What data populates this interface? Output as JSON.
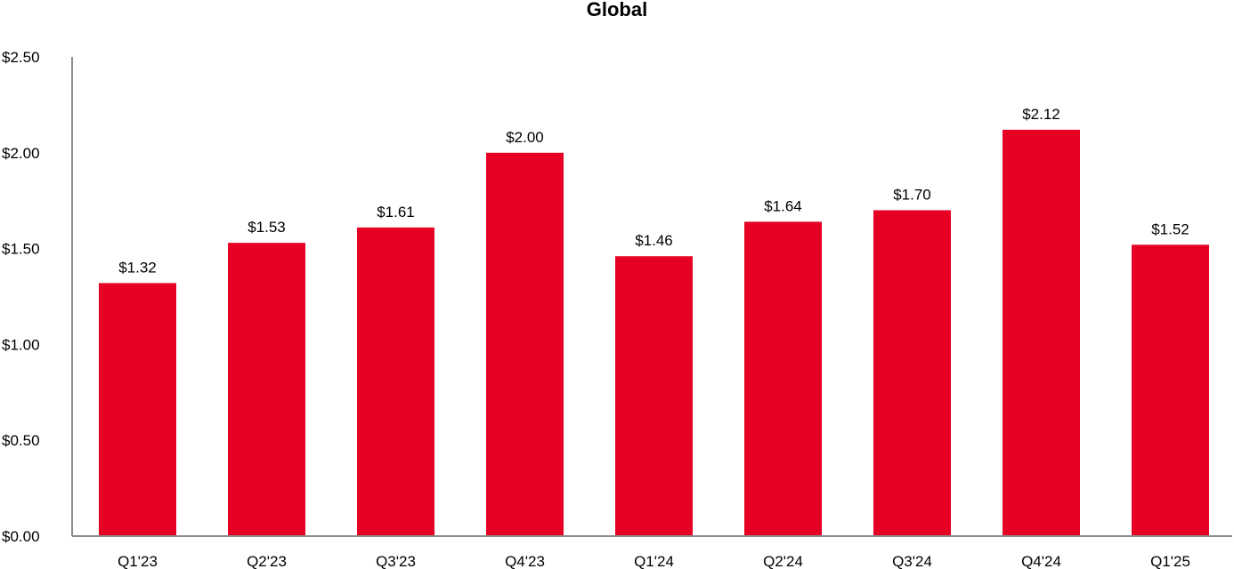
{
  "chart_data": {
    "type": "bar",
    "title": "Global",
    "xlabel": "",
    "ylabel": "",
    "categories": [
      "Q1'23",
      "Q2'23",
      "Q3'23",
      "Q4'23",
      "Q1'24",
      "Q2'24",
      "Q3'24",
      "Q4'24",
      "Q1'25"
    ],
    "values": [
      1.32,
      1.53,
      1.61,
      2.0,
      1.46,
      1.64,
      1.7,
      2.12,
      1.52
    ],
    "data_labels": [
      "$1.32",
      "$1.53",
      "$1.61",
      "$2.00",
      "$1.46",
      "$1.64",
      "$1.70",
      "$2.12",
      "$1.52"
    ],
    "ylim": [
      0,
      2.5
    ],
    "yticks": [
      0,
      0.5,
      1.0,
      1.5,
      2.0,
      2.5
    ],
    "ytick_labels": [
      "$0.00",
      "$0.50",
      "$1.00",
      "$1.50",
      "$2.00",
      "$2.50"
    ],
    "grid": false,
    "legend": "none",
    "colors": {
      "bar": "#e60023",
      "axis": "#8c8c8c",
      "text": "#000000"
    }
  }
}
